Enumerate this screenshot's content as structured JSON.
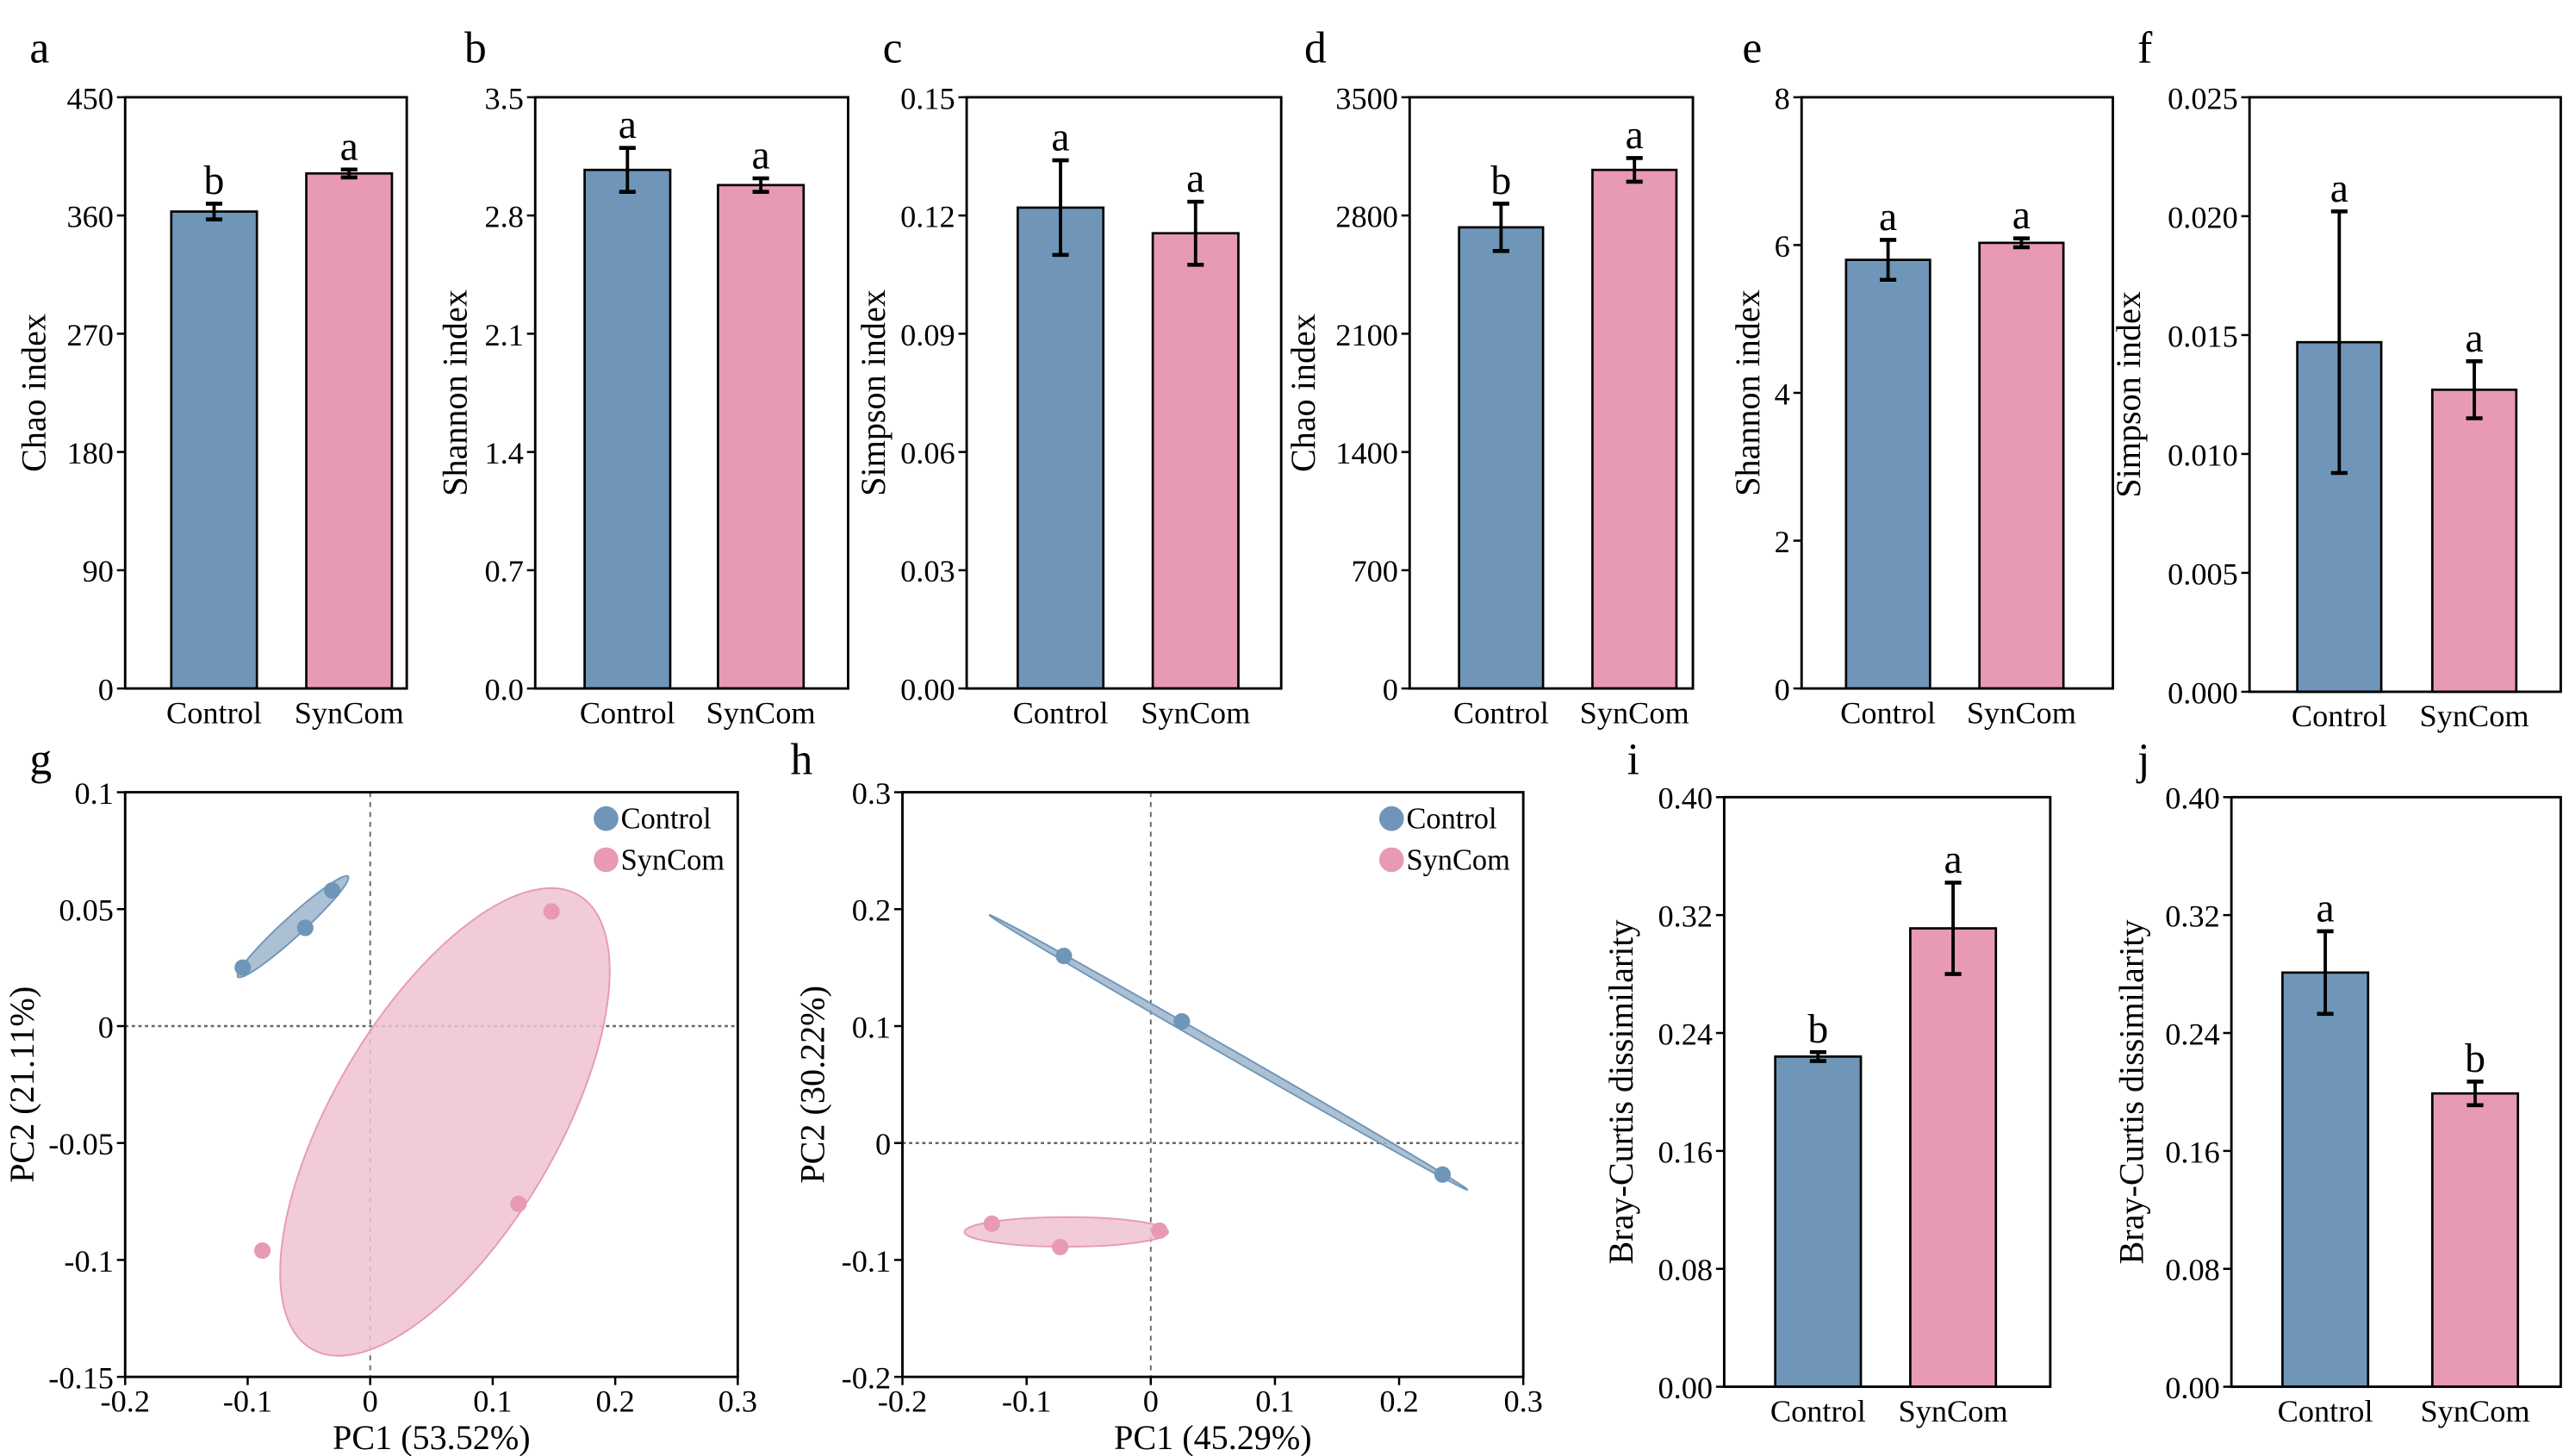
{
  "colors": {
    "control": "#6f96b8",
    "syncom": "#e79ab2",
    "control_ellipse": "#9db5cd",
    "syncom_ellipse": "#f0c2d1"
  },
  "chart_data": [
    {
      "panel": "a",
      "type": "bar",
      "categories": [
        "Control",
        "SynCom"
      ],
      "values": [
        363,
        392
      ],
      "errors": [
        6,
        3
      ],
      "letters": [
        "b",
        "a"
      ],
      "ylabel": "Chao index",
      "ylim": [
        0,
        450
      ],
      "yticks": [
        "0",
        "90",
        "180",
        "270",
        "360",
        "450"
      ]
    },
    {
      "panel": "b",
      "type": "bar",
      "categories": [
        "Control",
        "SynCom"
      ],
      "values": [
        3.07,
        2.98
      ],
      "errors": [
        0.13,
        0.04
      ],
      "letters": [
        "a",
        "a"
      ],
      "ylabel": "Shannon index",
      "ylim": [
        0,
        3.5
      ],
      "yticks": [
        "0.0",
        "0.7",
        "1.4",
        "2.1",
        "2.8",
        "3.5"
      ]
    },
    {
      "panel": "c",
      "type": "bar",
      "categories": [
        "Control",
        "SynCom"
      ],
      "values": [
        0.122,
        0.1155
      ],
      "errors": [
        0.012,
        0.008
      ],
      "letters": [
        "a",
        "a"
      ],
      "ylabel": "Simpson index",
      "ylim": [
        0,
        0.15
      ],
      "yticks": [
        "0.00",
        "0.03",
        "0.06",
        "0.09",
        "0.12",
        "0.15"
      ]
    },
    {
      "panel": "d",
      "type": "bar",
      "categories": [
        "Control",
        "SynCom"
      ],
      "values": [
        2730,
        3070
      ],
      "errors": [
        140,
        70
      ],
      "letters": [
        "b",
        "a"
      ],
      "ylabel": "Chao index",
      "ylim": [
        0,
        3500
      ],
      "yticks": [
        "0",
        "700",
        "1400",
        "2100",
        "2800",
        "3500"
      ]
    },
    {
      "panel": "e",
      "type": "bar",
      "categories": [
        "Control",
        "SynCom"
      ],
      "values": [
        5.8,
        6.03
      ],
      "errors": [
        0.27,
        0.06
      ],
      "letters": [
        "a",
        "a"
      ],
      "ylabel": "Shannon index",
      "ylim": [
        0,
        8
      ],
      "yticks": [
        "0",
        "2",
        "4",
        "6",
        "8"
      ]
    },
    {
      "panel": "f",
      "type": "bar",
      "categories": [
        "Control",
        "SynCom"
      ],
      "values": [
        0.0147,
        0.0127
      ],
      "errors": [
        0.0055,
        0.0012
      ],
      "letters": [
        "a",
        "a"
      ],
      "ylabel": "Simpson index",
      "ylim": [
        0,
        0.025
      ],
      "yticks": [
        "0.000",
        "0.005",
        "0.010",
        "0.015",
        "0.020",
        "0.025"
      ]
    },
    {
      "panel": "g",
      "type": "scatter",
      "xlabel": "PC1 (53.52%)",
      "ylabel": "PC2 (21.11%)",
      "xlim": [
        -0.2,
        0.3
      ],
      "ylim": [
        -0.15,
        0.1
      ],
      "xticks": [
        "-0.2",
        "-0.1",
        "0",
        "0.1",
        "0.2",
        "0.3"
      ],
      "yticks": [
        "-0.15",
        "-0.1",
        "-0.05",
        "0",
        "0.05",
        "0.1"
      ],
      "legend": "top-right",
      "series": [
        {
          "name": "Control",
          "points": [
            [
              -0.104,
              0.025
            ],
            [
              -0.053,
              0.042
            ],
            [
              -0.031,
              0.058
            ]
          ]
        },
        {
          "name": "SynCom",
          "points": [
            [
              0.148,
              0.049
            ],
            [
              0.121,
              -0.076
            ],
            [
              -0.088,
              -0.096
            ]
          ]
        }
      ]
    },
    {
      "panel": "h",
      "type": "scatter",
      "xlabel": "PC1 (45.29%)",
      "ylabel": "PC2 (30.22%)",
      "xlim": [
        -0.2,
        0.3
      ],
      "ylim": [
        -0.2,
        0.3
      ],
      "xticks": [
        "-0.2",
        "-0.1",
        "0",
        "0.1",
        "0.2",
        "0.3"
      ],
      "yticks": [
        "-0.2",
        "-0.1",
        "0",
        "0.1",
        "0.2",
        "0.3"
      ],
      "legend": "top-right",
      "series": [
        {
          "name": "Control",
          "points": [
            [
              -0.07,
              0.16
            ],
            [
              0.025,
              0.104
            ],
            [
              0.235,
              -0.027
            ]
          ]
        },
        {
          "name": "SynCom",
          "points": [
            [
              -0.128,
              -0.069
            ],
            [
              -0.073,
              -0.089
            ],
            [
              0.007,
              -0.075
            ]
          ]
        }
      ]
    },
    {
      "panel": "i",
      "type": "bar",
      "categories": [
        "Control",
        "SynCom"
      ],
      "values": [
        0.224,
        0.311
      ],
      "errors": [
        0.003,
        0.031
      ],
      "letters": [
        "b",
        "a"
      ],
      "ylabel": "Bray-Curtis dissimilarity",
      "ylim": [
        0,
        0.4
      ],
      "yticks": [
        "0.00",
        "0.08",
        "0.16",
        "0.24",
        "0.32",
        "0.40"
      ]
    },
    {
      "panel": "j",
      "type": "bar",
      "categories": [
        "Control",
        "SynCom"
      ],
      "values": [
        0.281,
        0.199
      ],
      "errors": [
        0.028,
        0.008
      ],
      "letters": [
        "a",
        "b"
      ],
      "ylabel": "Bray-Curtis dissimilarity",
      "ylim": [
        0,
        0.4
      ],
      "yticks": [
        "0.00",
        "0.08",
        "0.16",
        "0.24",
        "0.32",
        "0.40"
      ]
    }
  ]
}
